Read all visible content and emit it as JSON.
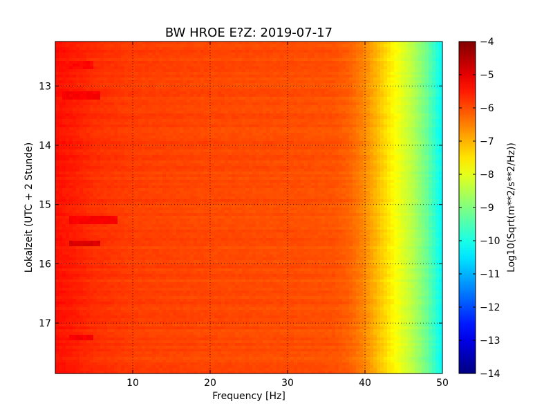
{
  "chart_data": {
    "type": "heatmap",
    "title": "BW HROE E?Z: 2019-07-17",
    "xlabel": "Frequency [Hz]",
    "ylabel": "Lokalzeit (UTC + 2 Stunde)",
    "xlim": [
      0,
      50
    ],
    "ylim": [
      12.25,
      17.85
    ],
    "x_ticks": [
      10,
      20,
      30,
      40,
      50
    ],
    "y_ticks": [
      13,
      14,
      15,
      16,
      17
    ],
    "y_inverted": true,
    "grid": true,
    "colormap": "jet",
    "colorbar": {
      "label": "Log10(Sqrt(m**2/s**2/Hz))",
      "range": [
        -14,
        -4
      ],
      "ticks": [
        -4,
        -5,
        -6,
        -7,
        -8,
        -9,
        -10,
        -11,
        -12,
        -13,
        -14
      ]
    },
    "profile": {
      "frequency_hz": [
        0,
        2,
        5,
        10,
        20,
        30,
        36,
        38,
        40,
        42,
        44,
        46,
        48,
        50
      ],
      "log10_amplitude": [
        -5.4,
        -5.5,
        -5.7,
        -5.85,
        -5.95,
        -6.0,
        -6.05,
        -6.2,
        -6.6,
        -7.2,
        -7.8,
        -8.4,
        -9.2,
        -10.3
      ]
    },
    "features": [
      {
        "time": 15.65,
        "freq_range": [
          2,
          6
        ],
        "log10_amplitude": -4.9
      },
      {
        "time": 15.25,
        "freq_range": [
          2,
          8
        ],
        "log10_amplitude": -5.2
      },
      {
        "time": 13.15,
        "freq_range": [
          1,
          6
        ],
        "log10_amplitude": -5.2
      },
      {
        "time": 12.65,
        "freq_range": [
          2,
          5
        ],
        "log10_amplitude": -5.3
      },
      {
        "time": 17.25,
        "freq_range": [
          2,
          5
        ],
        "log10_amplitude": -5.2
      }
    ]
  }
}
